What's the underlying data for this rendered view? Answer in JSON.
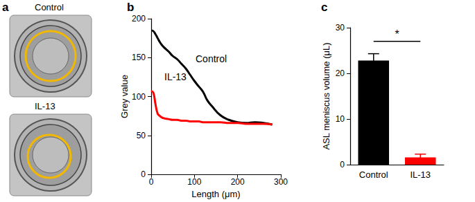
{
  "panel_labels": [
    "a",
    "b",
    "c"
  ],
  "images": [
    {
      "title": "Control"
    },
    {
      "title": "IL-13"
    }
  ],
  "chart_data": [
    {
      "type": "line",
      "x_label": "Length (μm)",
      "y_label": "Grey value",
      "x": [
        0,
        5,
        10,
        15,
        20,
        25,
        30,
        40,
        50,
        60,
        70,
        80,
        90,
        100,
        110,
        120,
        130,
        140,
        160,
        180,
        200,
        220,
        240,
        260,
        280
      ],
      "series": [
        {
          "name": "Control",
          "color": "#000000",
          "values": [
            185,
            184,
            180,
            175,
            170,
            166,
            163,
            158,
            152,
            148,
            142,
            136,
            128,
            120,
            113,
            106,
            95,
            88,
            76,
            70,
            67,
            66,
            67,
            66,
            64
          ]
        },
        {
          "name": "IL-13",
          "color": "#ff0000",
          "values": [
            107,
            105,
            90,
            78,
            75,
            73,
            72,
            71,
            70,
            70,
            69,
            69,
            68,
            68,
            68,
            67,
            67,
            67,
            67,
            66,
            66,
            65,
            65,
            65,
            64
          ]
        }
      ],
      "xlim": [
        0,
        300
      ],
      "xticks": [
        0,
        100,
        200,
        300
      ],
      "ylim": [
        0,
        200
      ],
      "yticks": [
        0,
        50,
        100,
        150,
        200
      ],
      "grid": false
    },
    {
      "type": "bar",
      "y_label": "ASL meniscus volume (μL)",
      "categories": [
        "Control",
        "IL-13"
      ],
      "values": [
        22.8,
        1.6
      ],
      "error": [
        1.5,
        0.7
      ],
      "colors": [
        "#000000",
        "#ff0000"
      ],
      "significance": {
        "label": "*",
        "y": 27
      },
      "ylim": [
        0,
        30
      ],
      "yticks": [
        0,
        10,
        20,
        30
      ],
      "grid": false
    }
  ]
}
